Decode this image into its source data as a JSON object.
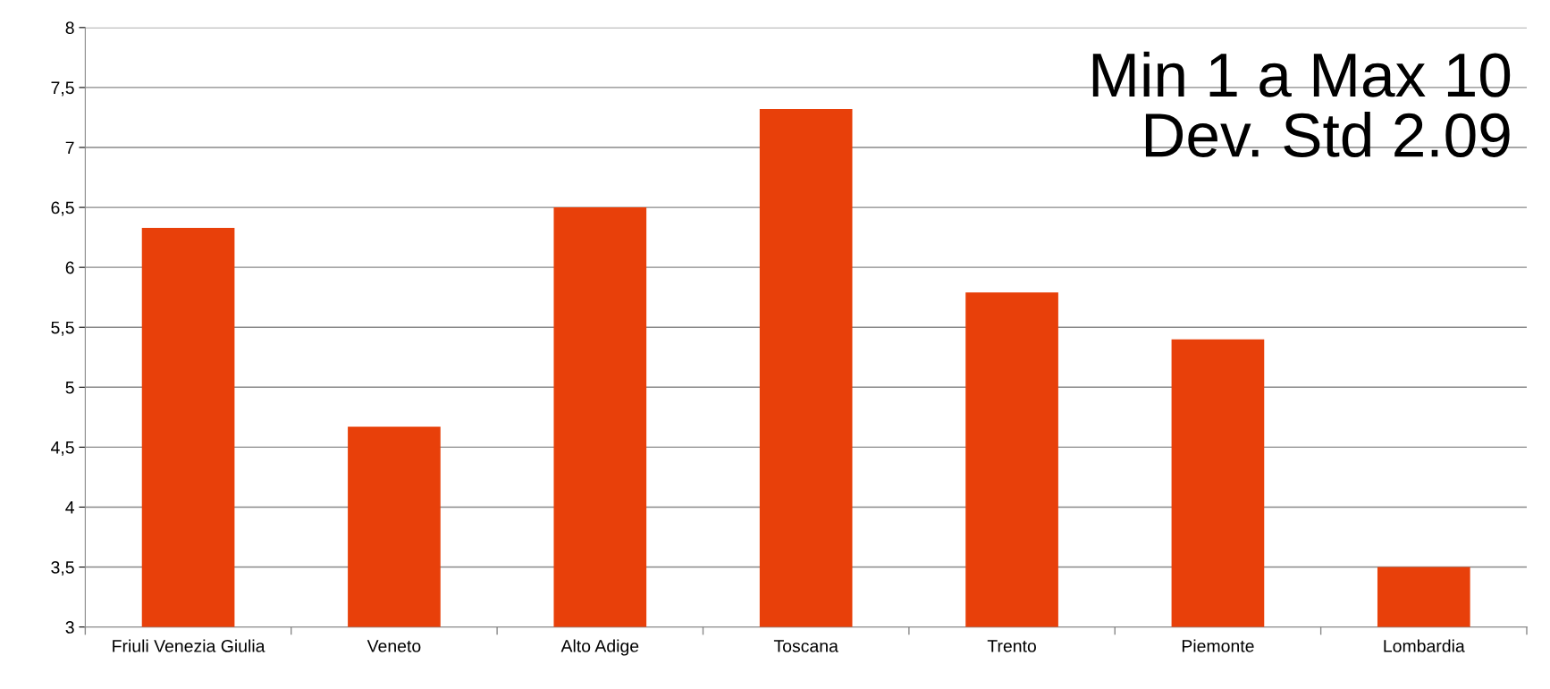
{
  "chart_data": {
    "type": "bar",
    "categories": [
      "Friuli Venezia Giulia",
      "Veneto",
      "Alto Adige",
      "Toscana",
      "Trento",
      "Piemonte",
      "Lombardia"
    ],
    "values": [
      6.33,
      4.67,
      6.5,
      7.32,
      5.79,
      5.4,
      3.5
    ],
    "color": "#e8400a",
    "ylim": [
      3,
      8
    ],
    "yticks": [
      3,
      {
        "value": 3.5,
        "label": "3,5"
      },
      4,
      {
        "value": 4.5,
        "label": "4,5"
      },
      5,
      {
        "value": 5.5,
        "label": "5,5"
      },
      6,
      {
        "value": 6.5,
        "label": "6,5"
      },
      7,
      {
        "value": 7.5,
        "label": "7,5"
      },
      8
    ],
    "grid": "y",
    "annotations": [
      "Min 1 a Max 10",
      "Dev. Std 2.09"
    ]
  }
}
